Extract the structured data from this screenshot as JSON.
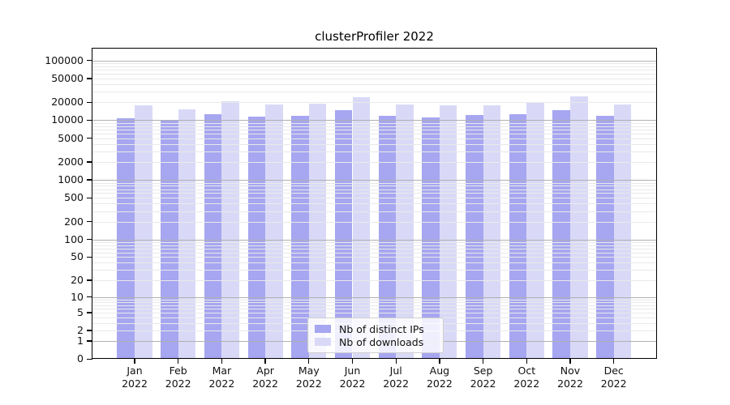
{
  "chart_data": {
    "type": "bar",
    "title": "clusterProfiler 2022",
    "year": "2022",
    "categories": [
      "Jan",
      "Feb",
      "Mar",
      "Apr",
      "May",
      "Jun",
      "Jul",
      "Aug",
      "Sep",
      "Oct",
      "Nov",
      "Dec"
    ],
    "series": [
      {
        "name": "Nb of distinct IPs",
        "color": "#a6a6f1",
        "values": [
          10600,
          9800,
          12400,
          11500,
          11900,
          14500,
          11900,
          11200,
          12100,
          12500,
          14600,
          11800
        ]
      },
      {
        "name": "Nb of downloads",
        "color": "#d9d9f7",
        "values": [
          17800,
          15000,
          20700,
          18000,
          18600,
          23900,
          18400,
          17700,
          17900,
          19400,
          25100,
          18400
        ]
      }
    ],
    "y_scale": "log10(value+1)",
    "ylim": [
      0,
      160000
    ],
    "y_ticks": [
      100000,
      50000,
      20000,
      10000,
      5000,
      2000,
      1000,
      500,
      200,
      100,
      50,
      20,
      10,
      5,
      2,
      1,
      0
    ],
    "grid": true,
    "grid_major_at": [
      1,
      10,
      100,
      1000,
      10000,
      100000
    ],
    "legend_position": "bottom-center",
    "colors": {
      "bar_dark": "#a6a6f1",
      "bar_light": "#d9d9f7",
      "grid_major": "#b0b0b0",
      "grid_minor": "#e9e9e9",
      "spine": "#000000",
      "background": "#ffffff"
    }
  },
  "legend": {
    "items": [
      {
        "label": "Nb of distinct IPs"
      },
      {
        "label": "Nb of downloads"
      }
    ]
  }
}
